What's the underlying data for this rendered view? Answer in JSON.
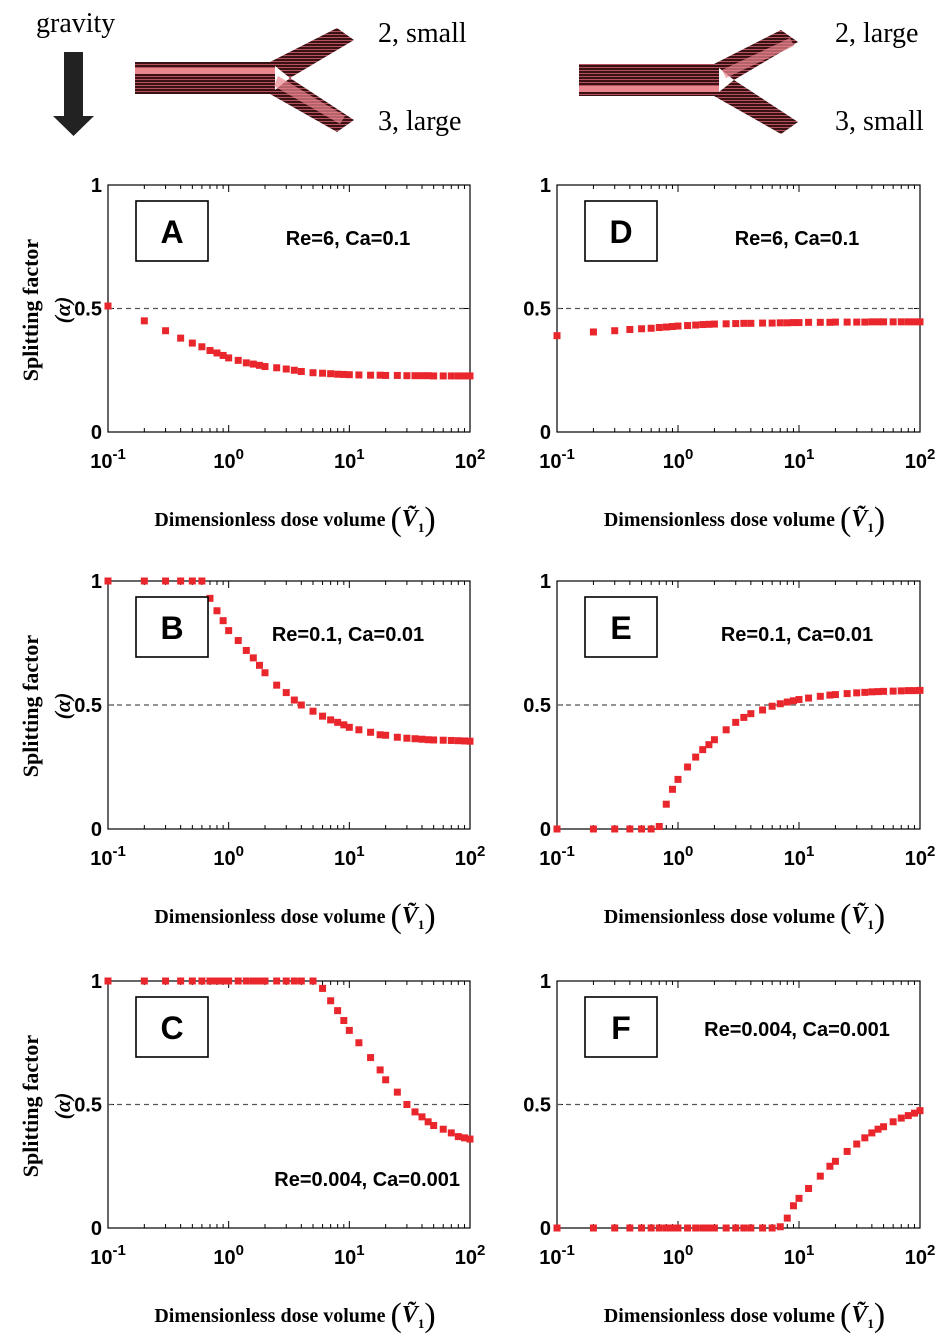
{
  "header": {
    "gravity_label": "gravity",
    "left_junction": {
      "branch2": "2, small",
      "branch3": "3, large"
    },
    "right_junction": {
      "branch2": "2, large",
      "branch3": "3, small"
    }
  },
  "colors": {
    "marker": "#e8262c",
    "axis": "#000000",
    "refline": "#555555",
    "channel_dark": "#3a1216",
    "channel_light": "#e9868e"
  },
  "common": {
    "ylabel_line1": "Splitting factor",
    "ylabel_line2": "(α)",
    "xlabel": "Dimensionless dose volume",
    "xlabel_symbol": "Ṽ",
    "xlabel_subscript": "1"
  },
  "chart_data": [
    {
      "id": "A",
      "type": "scatter",
      "xscale": "log",
      "xlim": [
        0.1,
        100
      ],
      "ylim": [
        0,
        1
      ],
      "yticks": [
        "0",
        "0.5",
        "1"
      ],
      "xticks": [
        {
          "base": "10",
          "exp": "-1"
        },
        {
          "base": "10",
          "exp": "0"
        },
        {
          "base": "10",
          "exp": "1"
        },
        {
          "base": "10",
          "exp": "2"
        }
      ],
      "reference_line": 0.5,
      "panel_label": "A",
      "annotation": "Re=6,  Ca=0.1",
      "annotation_position": "top-right",
      "points": [
        [
          0.1,
          0.51
        ],
        [
          0.2,
          0.45
        ],
        [
          0.3,
          0.41
        ],
        [
          0.4,
          0.38
        ],
        [
          0.5,
          0.36
        ],
        [
          0.6,
          0.345
        ],
        [
          0.7,
          0.33
        ],
        [
          0.8,
          0.32
        ],
        [
          0.9,
          0.31
        ],
        [
          1,
          0.3
        ],
        [
          1.2,
          0.29
        ],
        [
          1.4,
          0.28
        ],
        [
          1.6,
          0.275
        ],
        [
          1.8,
          0.27
        ],
        [
          2,
          0.265
        ],
        [
          2.5,
          0.26
        ],
        [
          3,
          0.255
        ],
        [
          3.5,
          0.25
        ],
        [
          4,
          0.245
        ],
        [
          5,
          0.24
        ],
        [
          6,
          0.238
        ],
        [
          7,
          0.236
        ],
        [
          8,
          0.234
        ],
        [
          9,
          0.233
        ],
        [
          10,
          0.232
        ],
        [
          12,
          0.231
        ],
        [
          15,
          0.23
        ],
        [
          18,
          0.23
        ],
        [
          20,
          0.229
        ],
        [
          25,
          0.229
        ],
        [
          30,
          0.228
        ],
        [
          35,
          0.228
        ],
        [
          40,
          0.228
        ],
        [
          45,
          0.228
        ],
        [
          50,
          0.227
        ],
        [
          60,
          0.227
        ],
        [
          70,
          0.227
        ],
        [
          80,
          0.227
        ],
        [
          90,
          0.227
        ],
        [
          100,
          0.227
        ]
      ]
    },
    {
      "id": "B",
      "type": "scatter",
      "xscale": "log",
      "xlim": [
        0.1,
        100
      ],
      "ylim": [
        0,
        1
      ],
      "yticks": [
        "0",
        "0.5",
        "1"
      ],
      "xticks": [
        {
          "base": "10",
          "exp": "-1"
        },
        {
          "base": "10",
          "exp": "0"
        },
        {
          "base": "10",
          "exp": "1"
        },
        {
          "base": "10",
          "exp": "2"
        }
      ],
      "reference_line": 0.5,
      "panel_label": "B",
      "annotation": "Re=0.1,  Ca=0.01",
      "annotation_position": "top-right",
      "points": [
        [
          0.1,
          1
        ],
        [
          0.2,
          1
        ],
        [
          0.3,
          1
        ],
        [
          0.4,
          1
        ],
        [
          0.5,
          1
        ],
        [
          0.6,
          1
        ],
        [
          0.7,
          0.93
        ],
        [
          0.8,
          0.88
        ],
        [
          0.9,
          0.84
        ],
        [
          1,
          0.8
        ],
        [
          1.2,
          0.76
        ],
        [
          1.4,
          0.72
        ],
        [
          1.6,
          0.69
        ],
        [
          1.8,
          0.66
        ],
        [
          2,
          0.63
        ],
        [
          2.5,
          0.58
        ],
        [
          3,
          0.55
        ],
        [
          3.5,
          0.52
        ],
        [
          4,
          0.5
        ],
        [
          5,
          0.475
        ],
        [
          6,
          0.455
        ],
        [
          7,
          0.44
        ],
        [
          8,
          0.43
        ],
        [
          9,
          0.42
        ],
        [
          10,
          0.41
        ],
        [
          12,
          0.4
        ],
        [
          15,
          0.39
        ],
        [
          18,
          0.38
        ],
        [
          20,
          0.378
        ],
        [
          25,
          0.37
        ],
        [
          30,
          0.366
        ],
        [
          35,
          0.364
        ],
        [
          40,
          0.362
        ],
        [
          45,
          0.36
        ],
        [
          50,
          0.359
        ],
        [
          60,
          0.358
        ],
        [
          70,
          0.357
        ],
        [
          80,
          0.356
        ],
        [
          90,
          0.355
        ],
        [
          100,
          0.354
        ]
      ]
    },
    {
      "id": "C",
      "type": "scatter",
      "xscale": "log",
      "xlim": [
        0.1,
        100
      ],
      "ylim": [
        0,
        1
      ],
      "yticks": [
        "0",
        "0.5",
        "1"
      ],
      "xticks": [
        {
          "base": "10",
          "exp": "-1"
        },
        {
          "base": "10",
          "exp": "0"
        },
        {
          "base": "10",
          "exp": "1"
        },
        {
          "base": "10",
          "exp": "2"
        }
      ],
      "reference_line": 0.5,
      "panel_label": "C",
      "annotation": "Re=0.004,  Ca=0.001",
      "annotation_position": "bottom-right",
      "points": [
        [
          0.1,
          1
        ],
        [
          0.2,
          1
        ],
        [
          0.3,
          1
        ],
        [
          0.4,
          1
        ],
        [
          0.5,
          1
        ],
        [
          0.6,
          1
        ],
        [
          0.7,
          1
        ],
        [
          0.8,
          1
        ],
        [
          0.9,
          1
        ],
        [
          1,
          1
        ],
        [
          1.2,
          1
        ],
        [
          1.4,
          1
        ],
        [
          1.6,
          1
        ],
        [
          1.8,
          1
        ],
        [
          2,
          1
        ],
        [
          2.5,
          1
        ],
        [
          3,
          1
        ],
        [
          3.5,
          1
        ],
        [
          4,
          1
        ],
        [
          5,
          1
        ],
        [
          6,
          0.97
        ],
        [
          7,
          0.92
        ],
        [
          8,
          0.88
        ],
        [
          9,
          0.84
        ],
        [
          10,
          0.8
        ],
        [
          12,
          0.75
        ],
        [
          15,
          0.69
        ],
        [
          18,
          0.64
        ],
        [
          20,
          0.6
        ],
        [
          25,
          0.55
        ],
        [
          30,
          0.5
        ],
        [
          35,
          0.47
        ],
        [
          40,
          0.45
        ],
        [
          45,
          0.43
        ],
        [
          50,
          0.415
        ],
        [
          60,
          0.4
        ],
        [
          70,
          0.385
        ],
        [
          80,
          0.37
        ],
        [
          90,
          0.365
        ],
        [
          100,
          0.36
        ]
      ]
    },
    {
      "id": "D",
      "type": "scatter",
      "xscale": "log",
      "xlim": [
        0.1,
        100
      ],
      "ylim": [
        0,
        1
      ],
      "yticks": [
        "0",
        "0.5",
        "1"
      ],
      "xticks": [
        {
          "base": "10",
          "exp": "-1"
        },
        {
          "base": "10",
          "exp": "0"
        },
        {
          "base": "10",
          "exp": "1"
        },
        {
          "base": "10",
          "exp": "2"
        }
      ],
      "reference_line": 0.5,
      "panel_label": "D",
      "annotation": "Re=6,  Ca=0.1",
      "annotation_position": "top-right",
      "points": [
        [
          0.1,
          0.39
        ],
        [
          0.2,
          0.405
        ],
        [
          0.3,
          0.41
        ],
        [
          0.4,
          0.415
        ],
        [
          0.5,
          0.418
        ],
        [
          0.6,
          0.42
        ],
        [
          0.7,
          0.423
        ],
        [
          0.8,
          0.425
        ],
        [
          0.9,
          0.427
        ],
        [
          1,
          0.429
        ],
        [
          1.2,
          0.431
        ],
        [
          1.4,
          0.433
        ],
        [
          1.6,
          0.435
        ],
        [
          1.8,
          0.436
        ],
        [
          2,
          0.437
        ],
        [
          2.5,
          0.438
        ],
        [
          3,
          0.439
        ],
        [
          3.5,
          0.44
        ],
        [
          4,
          0.44
        ],
        [
          5,
          0.441
        ],
        [
          6,
          0.441
        ],
        [
          7,
          0.442
        ],
        [
          8,
          0.442
        ],
        [
          9,
          0.443
        ],
        [
          10,
          0.443
        ],
        [
          12,
          0.444
        ],
        [
          15,
          0.444
        ],
        [
          18,
          0.444
        ],
        [
          20,
          0.445
        ],
        [
          25,
          0.445
        ],
        [
          30,
          0.445
        ],
        [
          35,
          0.445
        ],
        [
          40,
          0.446
        ],
        [
          45,
          0.446
        ],
        [
          50,
          0.446
        ],
        [
          60,
          0.446
        ],
        [
          70,
          0.446
        ],
        [
          80,
          0.446
        ],
        [
          90,
          0.446
        ],
        [
          100,
          0.446
        ]
      ]
    },
    {
      "id": "E",
      "type": "scatter",
      "xscale": "log",
      "xlim": [
        0.1,
        100
      ],
      "ylim": [
        0,
        1
      ],
      "yticks": [
        "0",
        "0.5",
        "1"
      ],
      "xticks": [
        {
          "base": "10",
          "exp": "-1"
        },
        {
          "base": "10",
          "exp": "0"
        },
        {
          "base": "10",
          "exp": "1"
        },
        {
          "base": "10",
          "exp": "2"
        }
      ],
      "reference_line": 0.5,
      "panel_label": "E",
      "annotation": "Re=0.1,  Ca=0.01",
      "annotation_position": "top-right",
      "points": [
        [
          0.1,
          0
        ],
        [
          0.2,
          0
        ],
        [
          0.3,
          0
        ],
        [
          0.4,
          0
        ],
        [
          0.5,
          0
        ],
        [
          0.6,
          0
        ],
        [
          0.7,
          0.01
        ],
        [
          0.8,
          0.1
        ],
        [
          0.9,
          0.16
        ],
        [
          1,
          0.2
        ],
        [
          1.2,
          0.25
        ],
        [
          1.4,
          0.29
        ],
        [
          1.6,
          0.32
        ],
        [
          1.8,
          0.34
        ],
        [
          2,
          0.36
        ],
        [
          2.5,
          0.4
        ],
        [
          3,
          0.43
        ],
        [
          3.5,
          0.45
        ],
        [
          4,
          0.465
        ],
        [
          5,
          0.48
        ],
        [
          6,
          0.495
        ],
        [
          7,
          0.505
        ],
        [
          8,
          0.512
        ],
        [
          9,
          0.517
        ],
        [
          10,
          0.522
        ],
        [
          12,
          0.528
        ],
        [
          15,
          0.535
        ],
        [
          18,
          0.54
        ],
        [
          20,
          0.542
        ],
        [
          25,
          0.546
        ],
        [
          30,
          0.549
        ],
        [
          35,
          0.551
        ],
        [
          40,
          0.553
        ],
        [
          45,
          0.554
        ],
        [
          50,
          0.555
        ],
        [
          60,
          0.556
        ],
        [
          70,
          0.557
        ],
        [
          80,
          0.558
        ],
        [
          90,
          0.558
        ],
        [
          100,
          0.559
        ]
      ]
    },
    {
      "id": "F",
      "type": "scatter",
      "xscale": "log",
      "xlim": [
        0.1,
        100
      ],
      "ylim": [
        0,
        1
      ],
      "yticks": [
        "0",
        "0.5",
        "1"
      ],
      "xticks": [
        {
          "base": "10",
          "exp": "-1"
        },
        {
          "base": "10",
          "exp": "0"
        },
        {
          "base": "10",
          "exp": "1"
        },
        {
          "base": "10",
          "exp": "2"
        }
      ],
      "reference_line": 0.5,
      "panel_label": "F",
      "annotation": "Re=0.004,  Ca=0.001",
      "annotation_position": "top-right",
      "points": [
        [
          0.1,
          0
        ],
        [
          0.2,
          0
        ],
        [
          0.3,
          0
        ],
        [
          0.4,
          0
        ],
        [
          0.5,
          0
        ],
        [
          0.6,
          0
        ],
        [
          0.7,
          0
        ],
        [
          0.8,
          0
        ],
        [
          0.9,
          0
        ],
        [
          1,
          0
        ],
        [
          1.2,
          0
        ],
        [
          1.4,
          0
        ],
        [
          1.6,
          0
        ],
        [
          1.8,
          0
        ],
        [
          2,
          0
        ],
        [
          2.5,
          0
        ],
        [
          3,
          0
        ],
        [
          3.5,
          0
        ],
        [
          4,
          0
        ],
        [
          5,
          0
        ],
        [
          6,
          0
        ],
        [
          7,
          0.005
        ],
        [
          8,
          0.04
        ],
        [
          9,
          0.09
        ],
        [
          10,
          0.12
        ],
        [
          12,
          0.16
        ],
        [
          15,
          0.21
        ],
        [
          18,
          0.25
        ],
        [
          20,
          0.27
        ],
        [
          25,
          0.31
        ],
        [
          30,
          0.34
        ],
        [
          35,
          0.365
        ],
        [
          40,
          0.385
        ],
        [
          45,
          0.4
        ],
        [
          50,
          0.41
        ],
        [
          60,
          0.43
        ],
        [
          70,
          0.445
        ],
        [
          80,
          0.455
        ],
        [
          90,
          0.465
        ],
        [
          100,
          0.475
        ]
      ]
    }
  ]
}
